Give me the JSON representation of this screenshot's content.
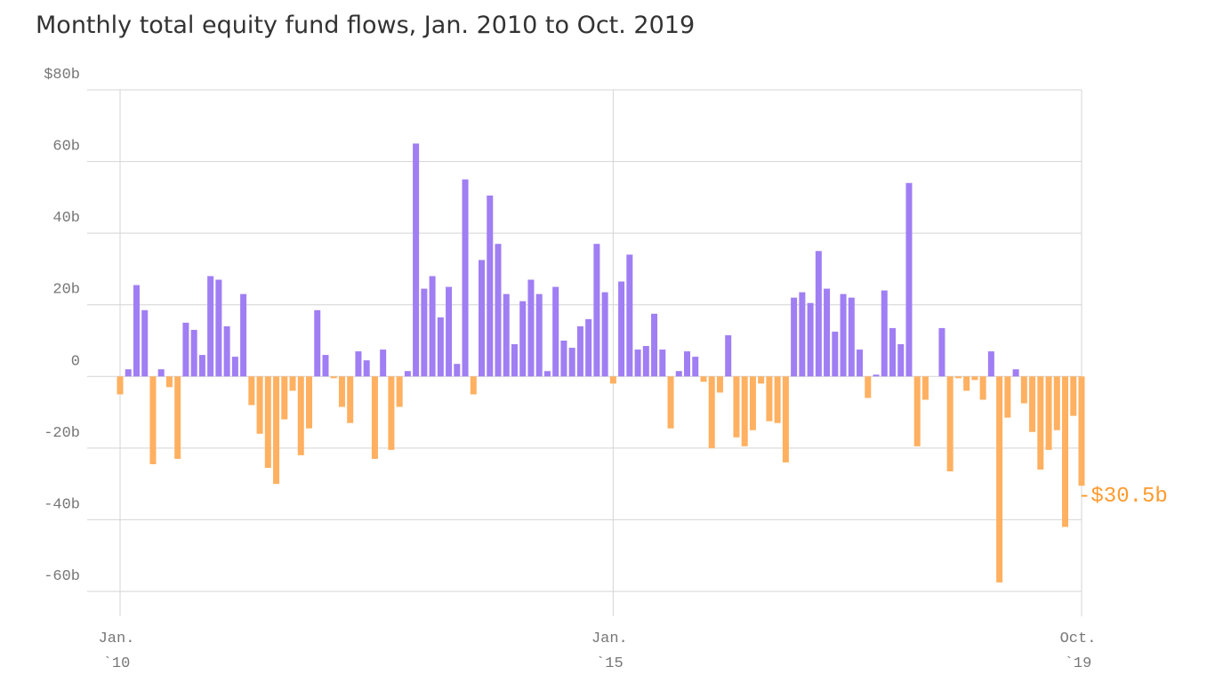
{
  "chart_data": {
    "type": "bar",
    "title": "Monthly total equity fund flows, Jan. 2010 to Oct. 2019",
    "categories": [
      [
        "Jan.",
        "`10"
      ],
      null,
      null,
      null,
      null,
      null,
      null,
      null,
      null,
      null,
      null,
      null,
      null,
      null,
      null,
      null,
      null,
      null,
      null,
      null,
      null,
      null,
      null,
      null,
      null,
      null,
      null,
      null,
      null,
      null,
      null,
      null,
      null,
      null,
      null,
      null,
      null,
      null,
      null,
      null,
      null,
      null,
      null,
      null,
      null,
      null,
      null,
      null,
      null,
      null,
      null,
      null,
      null,
      null,
      null,
      null,
      null,
      null,
      null,
      null,
      [
        "Jan.",
        "`15"
      ],
      null,
      null,
      null,
      null,
      null,
      null,
      null,
      null,
      null,
      null,
      null,
      null,
      null,
      null,
      null,
      null,
      null,
      null,
      null,
      null,
      null,
      null,
      null,
      null,
      null,
      null,
      null,
      null,
      null,
      null,
      null,
      null,
      null,
      null,
      null,
      null,
      null,
      null,
      null,
      null,
      null,
      null,
      null,
      null,
      null,
      null,
      null,
      null,
      null,
      null,
      null,
      null,
      null,
      null,
      null,
      null,
      [
        "Oct.",
        "`19"
      ]
    ],
    "values": [
      -5,
      2,
      25.5,
      18.5,
      -24.5,
      2,
      -3,
      -23,
      15,
      13,
      6,
      28,
      27,
      14,
      5.5,
      23,
      -8,
      -16,
      -25.5,
      -30,
      -12,
      -4,
      -22,
      -14.5,
      18.5,
      6,
      -0.5,
      -8.5,
      -13,
      7,
      4.5,
      -23,
      7.5,
      -20.5,
      -8.5,
      1.5,
      65,
      24.5,
      28,
      16.5,
      25,
      3.5,
      55,
      -5,
      32.5,
      50.5,
      37,
      23,
      9,
      21,
      27,
      23,
      1.5,
      25,
      10,
      8,
      14,
      16,
      37,
      23.5,
      -2,
      26.5,
      34,
      7.5,
      8.5,
      17.5,
      7.5,
      -14.5,
      1.5,
      7,
      5.5,
      -1.5,
      -20,
      -4.5,
      11.5,
      -17,
      -19.5,
      -15,
      -2,
      -12.5,
      -13,
      -24,
      22,
      23.5,
      20.5,
      35,
      24.5,
      12.5,
      23,
      22,
      7.5,
      -6,
      0.5,
      24,
      13.5,
      9,
      54,
      -19.5,
      -6.5,
      0,
      13.5,
      -26.5,
      -0.5,
      -4,
      -1,
      -6.5,
      7,
      -57.5,
      -11.5,
      2,
      -7.5,
      -15.5,
      -26,
      -20.5,
      -15,
      -42,
      -11,
      -30.5
    ],
    "value_labels": [
      null,
      null,
      null,
      null,
      null,
      null,
      null,
      null,
      null,
      null,
      null,
      null,
      null,
      null,
      null,
      null,
      null,
      null,
      null,
      null,
      null,
      null,
      null,
      null,
      null,
      null,
      null,
      null,
      null,
      null,
      null,
      null,
      null,
      null,
      null,
      null,
      null,
      null,
      null,
      null,
      null,
      null,
      null,
      null,
      null,
      null,
      null,
      null,
      null,
      null,
      null,
      null,
      null,
      null,
      null,
      null,
      null,
      null,
      null,
      null,
      null,
      null,
      null,
      null,
      null,
      null,
      null,
      null,
      null,
      null,
      null,
      null,
      null,
      null,
      null,
      null,
      null,
      null,
      null,
      null,
      null,
      null,
      null,
      null,
      null,
      null,
      null,
      null,
      null,
      null,
      null,
      null,
      null,
      null,
      null,
      null,
      null,
      null,
      null,
      null,
      null,
      null,
      null,
      null,
      null,
      null,
      null,
      null,
      null,
      null,
      null,
      null,
      null,
      null,
      null,
      null,
      null,
      "-$30.5b"
    ],
    "positive_color": "#a07ef3",
    "negative_color": "#ffb060",
    "label_color": "#ff9a2e",
    "ylim": [
      -60,
      80
    ],
    "yticks": [
      {
        "value": -60,
        "label": "-60b"
      },
      {
        "value": -40,
        "label": "-40b"
      },
      {
        "value": -20,
        "label": "-20b"
      },
      0,
      {
        "value": 20,
        "label": "20b"
      },
      {
        "value": 40,
        "label": "40b"
      },
      {
        "value": 60,
        "label": "60b"
      },
      {
        "value": 80,
        "label": "$80b"
      }
    ],
    "grid": true
  }
}
